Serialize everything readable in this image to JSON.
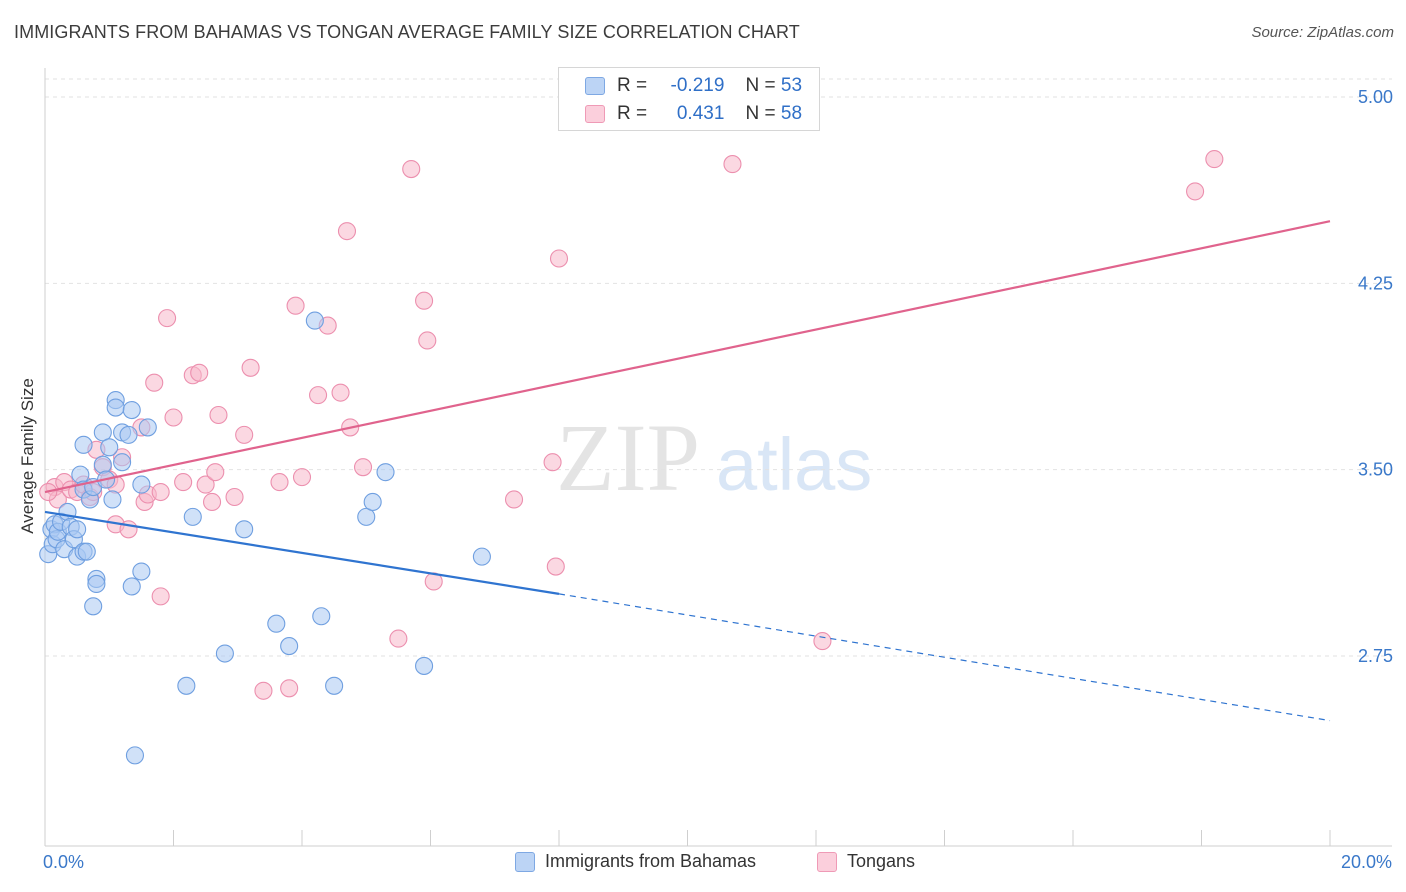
{
  "header": {
    "title": "IMMIGRANTS FROM BAHAMAS VS TONGAN AVERAGE FAMILY SIZE CORRELATION CHART",
    "source": "Source: ZipAtlas.com"
  },
  "watermark": {
    "zip": "ZIP",
    "atlas": "atlas"
  },
  "legend": {
    "rows": [
      {
        "r_label": "R =",
        "r_value": "-0.219",
        "n_label": "N =",
        "n_value": "53",
        "color": "#a9c8f2"
      },
      {
        "r_label": "R =",
        "r_value": "0.431",
        "n_label": "N =",
        "n_value": "58",
        "color": "#f7b8cb"
      }
    ]
  },
  "bottom_legend": {
    "items": [
      {
        "label": "Immigrants from Bahamas",
        "color": "#a9c8f2"
      },
      {
        "label": "Tongans",
        "color": "#f7b8cb"
      }
    ]
  },
  "colors": {
    "blue_fill": "#a9c8f2",
    "blue_stroke": "#6f9fe0",
    "blue_line": "#2f74d0",
    "pink_fill": "#f7b8cb",
    "pink_stroke": "#ec8fae",
    "pink_line": "#e0638d",
    "tick_text": "#3a78c9",
    "grid": "#e2e2e2"
  },
  "chart_data": {
    "type": "scatter",
    "title": "IMMIGRANTS FROM BAHAMAS VS TONGAN AVERAGE FAMILY SIZE CORRELATION CHART",
    "xlabel": "",
    "ylabel": "Average Family Size",
    "x_tick_labels": [
      "0.0%",
      "20.0%"
    ],
    "y_ticks": [
      2.75,
      3.5,
      4.25,
      5.0
    ],
    "y_tick_labels": [
      "2.75",
      "3.50",
      "4.25",
      "5.00"
    ],
    "xlim": [
      0,
      20
    ],
    "ylim": [
      2.0,
      5.1
    ],
    "grid": "horizontal dashed",
    "legend_position": "top-center",
    "series": [
      {
        "name": "Immigrants from Bahamas",
        "r": -0.219,
        "n": 53,
        "points": [
          [
            0.05,
            3.16
          ],
          [
            0.1,
            3.26
          ],
          [
            0.12,
            3.2
          ],
          [
            0.15,
            3.28
          ],
          [
            0.18,
            3.22
          ],
          [
            0.2,
            3.25
          ],
          [
            0.25,
            3.29
          ],
          [
            0.3,
            3.18
          ],
          [
            0.35,
            3.33
          ],
          [
            0.4,
            3.27
          ],
          [
            0.45,
            3.22
          ],
          [
            0.5,
            3.26
          ],
          [
            0.5,
            3.15
          ],
          [
            0.55,
            3.48
          ],
          [
            0.6,
            3.17
          ],
          [
            0.6,
            3.42
          ],
          [
            0.65,
            3.17
          ],
          [
            0.6,
            3.6
          ],
          [
            0.7,
            3.38
          ],
          [
            0.75,
            2.95
          ],
          [
            0.75,
            3.43
          ],
          [
            0.8,
            3.06
          ],
          [
            0.8,
            3.04
          ],
          [
            0.9,
            3.65
          ],
          [
            0.9,
            3.52
          ],
          [
            0.95,
            3.46
          ],
          [
            1.0,
            3.59
          ],
          [
            1.05,
            3.38
          ],
          [
            1.1,
            3.78
          ],
          [
            1.1,
            3.75
          ],
          [
            1.2,
            3.65
          ],
          [
            1.2,
            3.53
          ],
          [
            1.3,
            3.64
          ],
          [
            1.35,
            3.03
          ],
          [
            1.35,
            3.74
          ],
          [
            1.5,
            3.09
          ],
          [
            1.5,
            3.44
          ],
          [
            1.6,
            3.67
          ],
          [
            2.2,
            2.63
          ],
          [
            2.3,
            3.31
          ],
          [
            2.8,
            2.76
          ],
          [
            3.1,
            3.26
          ],
          [
            3.6,
            2.88
          ],
          [
            3.8,
            2.79
          ],
          [
            4.2,
            4.1
          ],
          [
            4.3,
            2.91
          ],
          [
            4.5,
            2.63
          ],
          [
            5.0,
            3.31
          ],
          [
            5.1,
            3.37
          ],
          [
            5.3,
            3.49
          ],
          [
            5.9,
            2.71
          ],
          [
            6.8,
            3.15
          ],
          [
            1.4,
            2.35
          ]
        ]
      },
      {
        "name": "Tongans",
        "r": 0.431,
        "n": 58,
        "points": [
          [
            0.15,
            3.43
          ],
          [
            0.2,
            3.38
          ],
          [
            0.3,
            3.45
          ],
          [
            0.4,
            3.42
          ],
          [
            0.5,
            3.41
          ],
          [
            0.6,
            3.44
          ],
          [
            0.7,
            3.39
          ],
          [
            0.75,
            3.41
          ],
          [
            0.8,
            3.58
          ],
          [
            0.9,
            3.51
          ],
          [
            1.0,
            3.46
          ],
          [
            1.1,
            3.44
          ],
          [
            1.1,
            3.28
          ],
          [
            1.2,
            3.55
          ],
          [
            1.3,
            3.26
          ],
          [
            1.5,
            3.67
          ],
          [
            1.55,
            3.37
          ],
          [
            1.6,
            3.4
          ],
          [
            1.7,
            3.85
          ],
          [
            1.8,
            3.41
          ],
          [
            1.8,
            2.99
          ],
          [
            1.9,
            4.11
          ],
          [
            2.0,
            3.71
          ],
          [
            2.15,
            3.45
          ],
          [
            2.3,
            3.88
          ],
          [
            2.4,
            3.89
          ],
          [
            2.5,
            3.44
          ],
          [
            2.6,
            3.37
          ],
          [
            2.65,
            3.49
          ],
          [
            2.7,
            3.72
          ],
          [
            2.95,
            3.39
          ],
          [
            3.1,
            3.64
          ],
          [
            3.2,
            3.91
          ],
          [
            3.4,
            2.61
          ],
          [
            3.65,
            3.45
          ],
          [
            3.8,
            2.62
          ],
          [
            3.9,
            4.16
          ],
          [
            4.0,
            3.47
          ],
          [
            4.25,
            3.8
          ],
          [
            4.4,
            4.08
          ],
          [
            4.6,
            3.81
          ],
          [
            4.7,
            4.46
          ],
          [
            4.75,
            3.67
          ],
          [
            4.95,
            3.51
          ],
          [
            5.5,
            2.82
          ],
          [
            5.7,
            4.71
          ],
          [
            5.9,
            4.18
          ],
          [
            5.95,
            4.02
          ],
          [
            6.05,
            3.05
          ],
          [
            7.3,
            3.38
          ],
          [
            7.9,
            3.53
          ],
          [
            7.95,
            3.11
          ],
          [
            8.0,
            4.35
          ],
          [
            10.7,
            4.73
          ],
          [
            12.1,
            2.81
          ],
          [
            17.9,
            4.62
          ],
          [
            18.2,
            4.75
          ],
          [
            0.05,
            3.41
          ]
        ]
      }
    ],
    "trendlines": [
      {
        "series": "Immigrants from Bahamas",
        "solid_from": [
          0,
          3.33
        ],
        "solid_to": [
          8.0,
          3.0
        ],
        "dashed_to": [
          20.0,
          2.49
        ]
      },
      {
        "series": "Tongans",
        "from": [
          0,
          3.41
        ],
        "to": [
          20.0,
          4.5
        ]
      }
    ]
  }
}
